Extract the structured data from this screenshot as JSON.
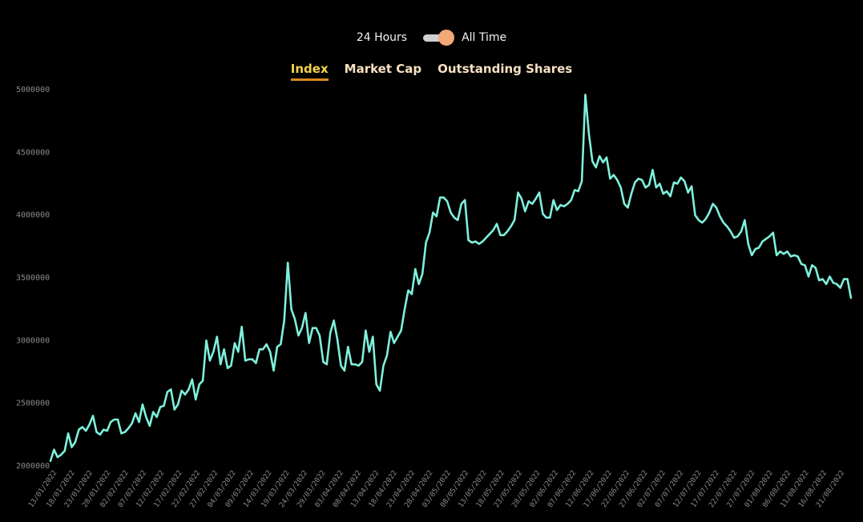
{
  "toggle": {
    "left_label": "24 Hours",
    "right_label": "All Time",
    "selected": "All Time"
  },
  "tabs": [
    {
      "label": "Index",
      "active": true
    },
    {
      "label": "Market Cap",
      "active": false
    },
    {
      "label": "Outstanding Shares",
      "active": false
    }
  ],
  "colors": {
    "line": "#7ef0dc",
    "active_tab": "#f5d44a",
    "tab": "#f8e1c2",
    "underline": "#d98a1d",
    "knob": "#f3a878"
  },
  "chart_data": {
    "type": "line",
    "title": "",
    "xlabel": "",
    "ylabel": "",
    "ylim": [
      2000000,
      5000000
    ],
    "yticks": [
      2000000,
      2500000,
      3000000,
      3500000,
      4000000,
      4500000,
      5000000
    ],
    "xticks": [
      "13/01/2022",
      "18/01/2022",
      "23/01/2022",
      "28/01/2022",
      "02/02/2022",
      "07/02/2022",
      "12/02/2022",
      "17/02/2022",
      "22/02/2022",
      "27/02/2022",
      "04/03/2022",
      "09/03/2022",
      "14/03/2022",
      "19/03/2022",
      "24/03/2022",
      "29/03/2022",
      "03/04/2022",
      "08/04/2022",
      "13/04/2022",
      "18/04/2022",
      "23/04/2022",
      "28/04/2022",
      "03/05/2022",
      "08/05/2022",
      "13/05/2022",
      "18/05/2022",
      "23/05/2022",
      "28/05/2022",
      "02/06/2022",
      "07/06/2022",
      "12/06/2022",
      "17/06/2022",
      "22/06/2022",
      "27/06/2022",
      "02/07/2022",
      "07/07/2022",
      "12/07/2022",
      "17/07/2022",
      "22/07/2022",
      "27/07/2022",
      "01/08/2022",
      "06/08/2022",
      "11/08/2022",
      "16/08/2022",
      "21/08/2022"
    ],
    "series": [
      {
        "values": [
          2040000,
          2130000,
          2070000,
          2090000,
          2120000,
          2260000,
          2150000,
          2190000,
          2290000,
          2310000,
          2280000,
          2330000,
          2400000,
          2270000,
          2250000,
          2290000,
          2280000,
          2350000,
          2370000,
          2370000,
          2260000,
          2270000,
          2300000,
          2340000,
          2420000,
          2350000,
          2490000,
          2390000,
          2320000,
          2430000,
          2390000,
          2470000,
          2480000,
          2590000,
          2610000,
          2450000,
          2490000,
          2600000,
          2570000,
          2610000,
          2690000,
          2530000,
          2650000,
          2680000,
          3000000,
          2840000,
          2910000,
          3030000,
          2810000,
          2930000,
          2780000,
          2800000,
          2980000,
          2910000,
          3110000,
          2840000,
          2850000,
          2850000,
          2820000,
          2930000,
          2930000,
          2970000,
          2910000,
          2760000,
          2950000,
          2970000,
          3160000,
          3620000,
          3250000,
          3170000,
          3040000,
          3100000,
          3220000,
          2980000,
          3100000,
          3100000,
          3040000,
          2830000,
          2810000,
          3060000,
          3160000,
          3010000,
          2800000,
          2760000,
          2950000,
          2810000,
          2810000,
          2800000,
          2830000,
          3080000,
          2910000,
          3030000,
          2650000,
          2600000,
          2800000,
          2880000,
          3070000,
          2980000,
          3030000,
          3080000,
          3250000,
          3400000,
          3370000,
          3570000,
          3450000,
          3530000,
          3780000,
          3860000,
          4020000,
          3990000,
          4140000,
          4140000,
          4110000,
          4020000,
          3980000,
          3960000,
          4090000,
          4120000,
          3800000,
          3780000,
          3790000,
          3770000,
          3790000,
          3820000,
          3850000,
          3880000,
          3930000,
          3840000,
          3840000,
          3870000,
          3910000,
          3960000,
          4180000,
          4130000,
          4030000,
          4110000,
          4090000,
          4130000,
          4180000,
          4010000,
          3980000,
          3980000,
          4120000,
          4040000,
          4080000,
          4070000,
          4090000,
          4120000,
          4200000,
          4190000,
          4270000,
          4960000,
          4650000,
          4430000,
          4380000,
          4470000,
          4420000,
          4460000,
          4290000,
          4320000,
          4280000,
          4220000,
          4090000,
          4060000,
          4170000,
          4260000,
          4290000,
          4280000,
          4220000,
          4240000,
          4360000,
          4220000,
          4250000,
          4170000,
          4190000,
          4150000,
          4260000,
          4250000,
          4300000,
          4270000,
          4180000,
          4230000,
          4000000,
          3960000,
          3940000,
          3970000,
          4020000,
          4090000,
          4060000,
          3990000,
          3940000,
          3910000,
          3870000,
          3820000,
          3830000,
          3870000,
          3960000,
          3770000,
          3680000,
          3730000,
          3740000,
          3790000,
          3810000,
          3830000,
          3860000,
          3680000,
          3710000,
          3690000,
          3710000,
          3670000,
          3680000,
          3670000,
          3610000,
          3600000,
          3510000,
          3600000,
          3580000,
          3480000,
          3490000,
          3450000,
          3510000,
          3460000,
          3450000,
          3420000,
          3490000,
          3490000,
          3340000
        ]
      }
    ]
  }
}
